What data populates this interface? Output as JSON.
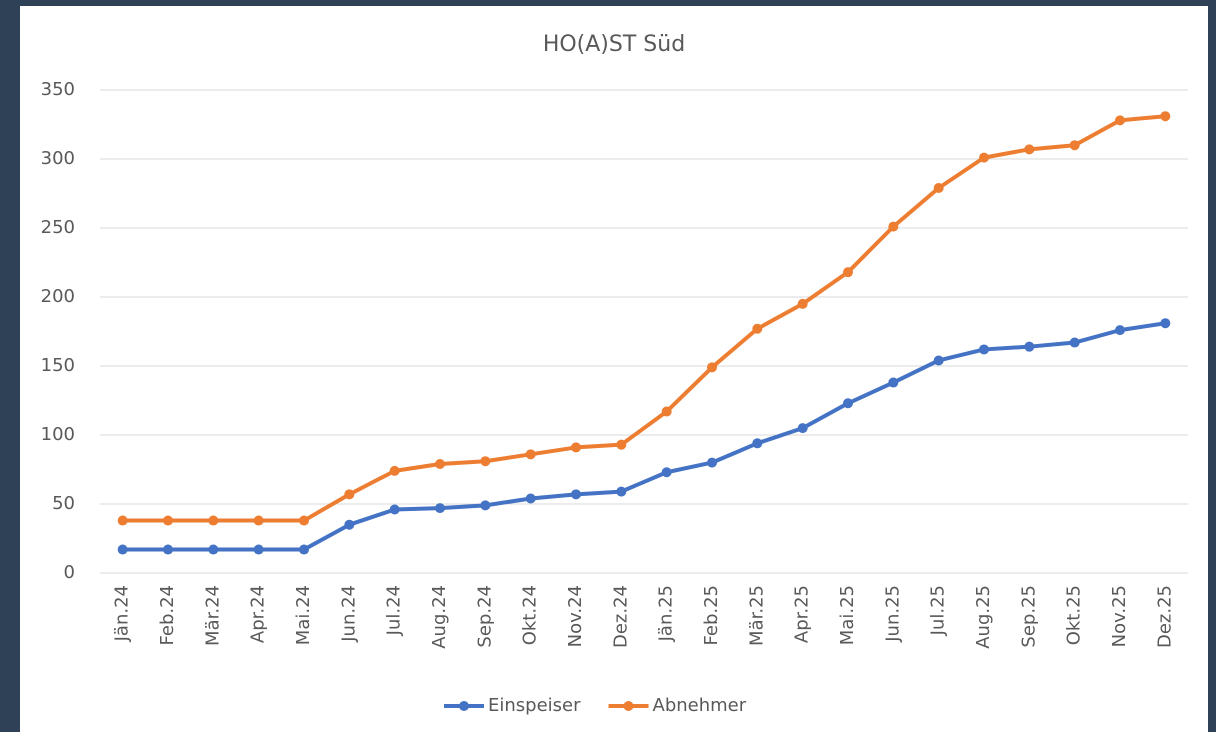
{
  "chart_data": {
    "type": "line",
    "title": "HO(A)ST Süd",
    "categories": [
      "Jän.24",
      "Feb.24",
      "Mär.24",
      "Apr.24",
      "Mai.24",
      "Jun.24",
      "Jul.24",
      "Aug.24",
      "Sep.24",
      "Okt.24",
      "Nov.24",
      "Dez.24",
      "Jän.25",
      "Feb.25",
      "Mär.25",
      "Apr.25",
      "Mai.25",
      "Jun.25",
      "Jul.25",
      "Aug.25",
      "Sep.25",
      "Okt.25",
      "Nov.25",
      "Dez.25"
    ],
    "series": [
      {
        "name": "Einspeiser",
        "color": "#4472c4",
        "values": [
          17,
          17,
          17,
          17,
          17,
          35,
          46,
          47,
          49,
          54,
          57,
          59,
          73,
          80,
          94,
          105,
          123,
          138,
          154,
          162,
          164,
          167,
          176,
          181
        ]
      },
      {
        "name": "Abnehmer",
        "color": "#ed7d31",
        "values": [
          38,
          38,
          38,
          38,
          38,
          57,
          74,
          79,
          81,
          86,
          91,
          93,
          117,
          149,
          177,
          195,
          218,
          251,
          279,
          301,
          307,
          310,
          328,
          331
        ]
      }
    ],
    "ylim": [
      0,
      350
    ],
    "yticks": [
      0,
      50,
      100,
      150,
      200,
      250,
      300,
      350
    ],
    "grid": true,
    "legend": "bottom"
  }
}
